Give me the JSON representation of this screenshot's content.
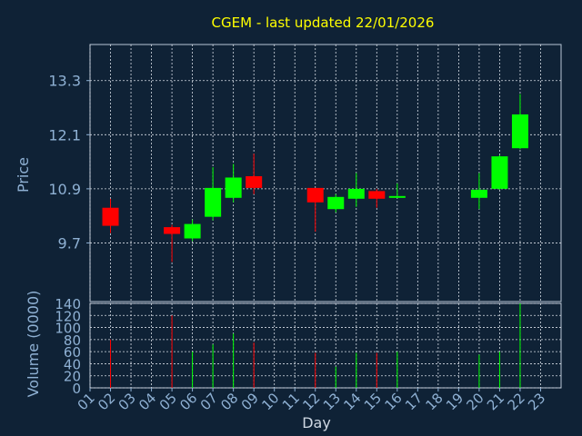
{
  "chart_data": {
    "type": "candlestick",
    "title": "CGEM - last updated 22/01/2026",
    "xlabel": "Day",
    "ylabel_price": "Price",
    "ylabel_volume": "Volume (0000)",
    "price_ylim": [
      8.4,
      14.1
    ],
    "price_ticks": [
      "9.7",
      "10.9",
      "12.1",
      "13.3"
    ],
    "volume_ylim": [
      0,
      140
    ],
    "volume_ticks": [
      "0",
      "20",
      "40",
      "60",
      "80",
      "100",
      "120",
      "140"
    ],
    "x_ticks": [
      "01",
      "02",
      "03",
      "04",
      "05",
      "06",
      "07",
      "08",
      "09",
      "10",
      "11",
      "12",
      "13",
      "14",
      "15",
      "16",
      "17",
      "18",
      "19",
      "20",
      "21",
      "22",
      "23"
    ],
    "grid": true,
    "colors": {
      "background": "#0f2236",
      "panel_border": "#b8c6d6",
      "grid": "#d7dde6",
      "title": "#ffff00",
      "axis_text": "#8fb1d4",
      "up": "#00ff00",
      "down": "#ff0000"
    },
    "candles": [
      {
        "day": 2,
        "open": 10.48,
        "high": 10.68,
        "low": 9.92,
        "close": 10.08,
        "volume": 80
      },
      {
        "day": 5,
        "open": 10.05,
        "high": 10.1,
        "low": 9.28,
        "close": 9.9,
        "volume": 120
      },
      {
        "day": 6,
        "open": 9.8,
        "high": 10.22,
        "low": 9.74,
        "close": 10.12,
        "volume": 60
      },
      {
        "day": 7,
        "open": 10.28,
        "high": 11.38,
        "low": 10.2,
        "close": 10.92,
        "volume": 72
      },
      {
        "day": 8,
        "open": 10.7,
        "high": 11.45,
        "low": 10.6,
        "close": 11.15,
        "volume": 90
      },
      {
        "day": 9,
        "open": 11.18,
        "high": 11.68,
        "low": 10.78,
        "close": 10.92,
        "volume": 75
      },
      {
        "day": 12,
        "open": 10.92,
        "high": 10.92,
        "low": 9.95,
        "close": 10.6,
        "volume": 58
      },
      {
        "day": 13,
        "open": 10.45,
        "high": 10.78,
        "low": 10.38,
        "close": 10.72,
        "volume": 35
      },
      {
        "day": 14,
        "open": 10.68,
        "high": 11.25,
        "low": 10.5,
        "close": 10.9,
        "volume": 58
      },
      {
        "day": 15,
        "open": 10.85,
        "high": 10.9,
        "low": 10.48,
        "close": 10.68,
        "volume": 58
      },
      {
        "day": 16,
        "open": 10.72,
        "high": 11.02,
        "low": 10.7,
        "close": 10.74,
        "volume": 60
      },
      {
        "day": 20,
        "open": 10.7,
        "high": 11.25,
        "low": 10.45,
        "close": 10.88,
        "volume": 55
      },
      {
        "day": 21,
        "open": 10.9,
        "high": 11.65,
        "low": 10.88,
        "close": 11.62,
        "volume": 60
      },
      {
        "day": 22,
        "open": 11.8,
        "high": 13.0,
        "low": 11.78,
        "close": 12.55,
        "volume": 140
      }
    ]
  }
}
